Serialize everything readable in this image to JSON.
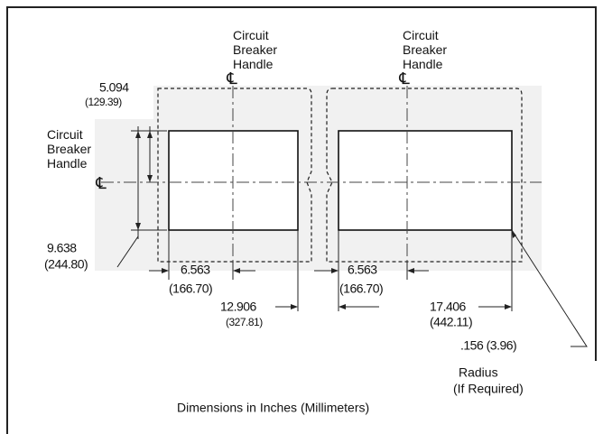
{
  "handles": [
    {
      "label": [
        "Circuit",
        "Breaker",
        "Handle"
      ],
      "symbol": "℄"
    },
    {
      "label": [
        "Circuit",
        "Breaker",
        "Handle"
      ],
      "symbol": "℄"
    },
    {
      "label": [
        "Circuit",
        "Breaker",
        "Handle"
      ],
      "symbol": "℄"
    }
  ],
  "dimensions": [
    {
      "inches": "5.094",
      "mm": "(129.39)"
    },
    {
      "inches": "9.638",
      "mm": "(244.80)"
    },
    {
      "inches": "6.563",
      "mm": "(166.70)"
    },
    {
      "inches": "6.563",
      "mm": "(166.70)"
    },
    {
      "inches": "12.906",
      "mm": "(327.81)"
    },
    {
      "inches": "17.406",
      "mm": "(442.11)"
    }
  ],
  "radius": {
    "value": ".156 (3.96)",
    "label": [
      "Radius",
      "(If Required)"
    ]
  },
  "caption": "Dimensions in Inches (Millimeters)"
}
